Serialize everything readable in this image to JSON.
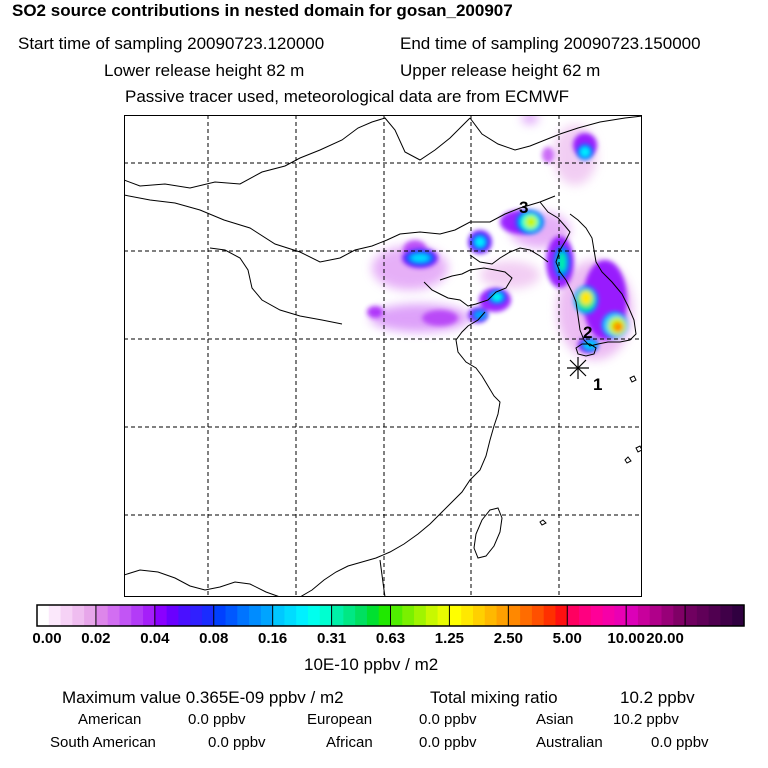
{
  "title": "SO2 source contributions in nested domain for gosan_200907",
  "start_label": "Start time of sampling 20090723.120000",
  "end_label": "End time of sampling 20090723.150000",
  "lower_label": "Lower release height   82 m",
  "upper_label": "Upper release height   62 m",
  "tracer_note": "Passive tracer used, meteorological data are from ECMWF",
  "map_labels": {
    "source_1": "1",
    "source_2": "2",
    "source_3": "3"
  },
  "colorbar": {
    "ticks": [
      "0.00",
      "0.02",
      "0.04",
      "0.08",
      "0.16",
      "0.31",
      "0.63",
      "1.25",
      "2.50",
      "5.00",
      "10.00",
      "20.00"
    ],
    "colors": [
      [
        "#ffffff",
        "#fbe8fb",
        "#f6d2f6",
        "#efbdf0",
        "#e7a6ea"
      ],
      [
        "#dd86ea",
        "#d26ef2",
        "#c255f5",
        "#b33bf7",
        "#a51ff9"
      ],
      [
        "#8a00ff",
        "#6a00ff",
        "#4a10ff",
        "#3020ff",
        "#1a2cff"
      ],
      [
        "#0040ff",
        "#0058ff",
        "#0074ff",
        "#008cff",
        "#00a4ff"
      ],
      [
        "#00c8ff",
        "#00dcff",
        "#00f0ff",
        "#00ffee",
        "#00ffd0"
      ],
      [
        "#00f0a8",
        "#00e884",
        "#00e060",
        "#00e030",
        "#20e800"
      ],
      [
        "#50ee00",
        "#7af000",
        "#a0f400",
        "#c8f800",
        "#e8fc00"
      ],
      [
        "#ffff00",
        "#ffe800",
        "#ffd000",
        "#ffb800",
        "#ffa000"
      ],
      [
        "#ff8800",
        "#ff6c00",
        "#ff5000",
        "#ff3000",
        "#ff1010"
      ],
      [
        "#ff0060",
        "#ff0080",
        "#ff0098",
        "#f600a8",
        "#ea00b4"
      ],
      [
        "#dc00b8",
        "#c8009c",
        "#b0008a",
        "#980078",
        "#800066"
      ],
      [
        "#700060",
        "#600058",
        "#500050",
        "#400048",
        "#300040"
      ]
    ]
  },
  "units_label": "10E-10 ppbv / m2",
  "max_value_label": "Maximum value  0.365E-09 ppbv / m2",
  "total_label": "Total mixing ratio",
  "total_value": "10.2 ppbv",
  "regions": [
    {
      "name": "American",
      "value": "0.0 ppbv"
    },
    {
      "name": "European",
      "value": "0.0 ppbv"
    },
    {
      "name": "Asian",
      "value": "10.2 ppbv"
    },
    {
      "name": "South American",
      "value": "0.0 ppbv"
    },
    {
      "name": "African",
      "value": "0.0 ppbv"
    },
    {
      "name": "Australian",
      "value": "0.0 ppbv"
    }
  ]
}
